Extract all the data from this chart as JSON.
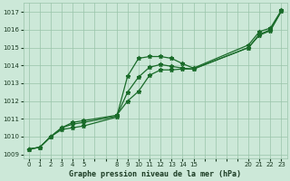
{
  "background_color": "#cce8d8",
  "plot_bg_color": "#cce8d8",
  "grid_color": "#99c4aa",
  "line_color": "#1a6b2a",
  "title": "Graphe pression niveau de la mer (hPa)",
  "ylim": [
    1008.8,
    1017.5
  ],
  "yticks": [
    1009,
    1010,
    1011,
    1012,
    1013,
    1014,
    1015,
    1016,
    1017
  ],
  "xlabels": [
    "0",
    "1",
    "2",
    "3",
    "4",
    "5",
    "",
    "",
    "8",
    "9",
    "10",
    "11",
    "12",
    "13",
    "14",
    "15",
    "",
    "",
    "",
    "",
    "20",
    "21",
    "22",
    "23"
  ],
  "series": [
    {
      "x": [
        0,
        1,
        2,
        3,
        4,
        5,
        8,
        9,
        10,
        11,
        12,
        13,
        14,
        15,
        20,
        21,
        22,
        23
      ],
      "xi": [
        0,
        1,
        2,
        3,
        4,
        5,
        8,
        9,
        10,
        11,
        12,
        13,
        14,
        15,
        20,
        21,
        22,
        23
      ],
      "y": [
        1009.3,
        1009.4,
        1010.0,
        1010.4,
        1010.5,
        1010.6,
        1011.1,
        1013.4,
        1014.4,
        1014.5,
        1014.5,
        1014.4,
        1014.1,
        1013.85,
        1015.15,
        1015.9,
        1016.1,
        1017.1
      ]
    },
    {
      "x": [
        0,
        1,
        2,
        3,
        4,
        5,
        8,
        9,
        10,
        11,
        12,
        13,
        14,
        15,
        20,
        21,
        22,
        23
      ],
      "xi": [
        0,
        1,
        2,
        3,
        4,
        5,
        8,
        9,
        10,
        11,
        12,
        13,
        14,
        15,
        20,
        21,
        22,
        23
      ],
      "y": [
        1009.3,
        1009.4,
        1010.0,
        1010.5,
        1010.7,
        1010.8,
        1011.15,
        1012.5,
        1013.35,
        1013.9,
        1014.05,
        1013.95,
        1013.85,
        1013.8,
        1015.0,
        1015.75,
        1016.0,
        1017.05
      ]
    },
    {
      "x": [
        0,
        1,
        2,
        3,
        4,
        5,
        8,
        9,
        10,
        11,
        12,
        13,
        14,
        15,
        20,
        21,
        22,
        23
      ],
      "xi": [
        0,
        1,
        2,
        3,
        4,
        5,
        8,
        9,
        10,
        11,
        12,
        13,
        14,
        15,
        20,
        21,
        22,
        23
      ],
      "y": [
        1009.3,
        1009.4,
        1010.0,
        1010.5,
        1010.8,
        1010.9,
        1011.2,
        1012.0,
        1012.55,
        1013.45,
        1013.75,
        1013.75,
        1013.8,
        1013.8,
        1015.0,
        1015.7,
        1015.95,
        1017.05
      ]
    }
  ]
}
